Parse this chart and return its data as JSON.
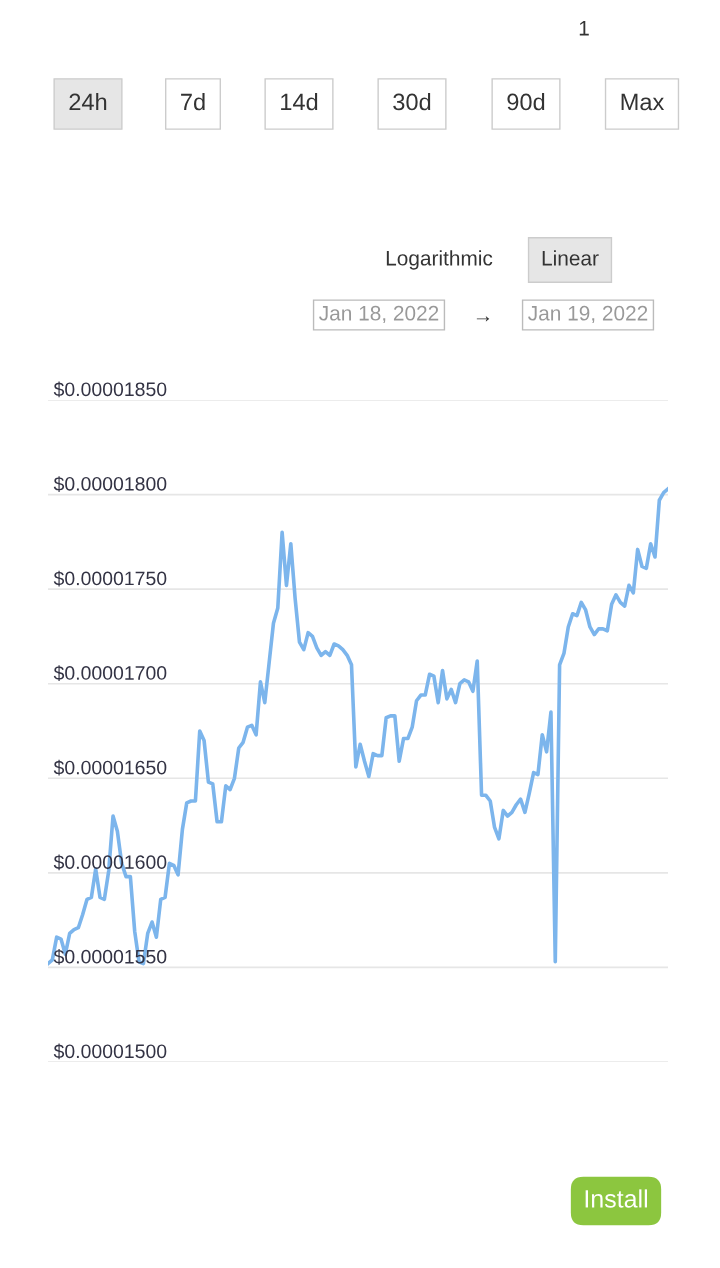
{
  "chart_data": {
    "type": "line",
    "categories": [
      null,
      null,
      null,
      null,
      null,
      null,
      null,
      null,
      null,
      null,
      null,
      null,
      null,
      null,
      null,
      null,
      null,
      null,
      null,
      null,
      null,
      null,
      null,
      null,
      null,
      null,
      null,
      null,
      null,
      null,
      null,
      null,
      null,
      null,
      null,
      null,
      null,
      null,
      null,
      null,
      null,
      null,
      null,
      null,
      null,
      null,
      null,
      null,
      null,
      null,
      null,
      null,
      null,
      null,
      null,
      null,
      null,
      null,
      null,
      null,
      null,
      null,
      null,
      null,
      null,
      null,
      null,
      null,
      null,
      null,
      null,
      null,
      null,
      null,
      null,
      null,
      null,
      null,
      null,
      null,
      null,
      null,
      null,
      null,
      null,
      null,
      null,
      null,
      null,
      null,
      null,
      null,
      null,
      null,
      null,
      null,
      null,
      null,
      null,
      null,
      null,
      null,
      null,
      null,
      null,
      null,
      null,
      null,
      null,
      null,
      null,
      null,
      null,
      null,
      null,
      null,
      null,
      null,
      null,
      null,
      null,
      null,
      null,
      null,
      null,
      null,
      null,
      null,
      null,
      null,
      null,
      null,
      null,
      null,
      null,
      null,
      null,
      null,
      null,
      null,
      null,
      null,
      null,
      null
    ],
    "series": [
      {
        "color": "#7cb5ec",
        "values": [
          1.552e-05,
          1.554e-05,
          1.566e-05,
          1.565e-05,
          1.557e-05,
          1.568e-05,
          1.57e-05,
          1.571e-05,
          1.578e-05,
          1.586e-05,
          1.587e-05,
          1.602e-05,
          1.587e-05,
          1.586e-05,
          1.601e-05,
          1.63e-05,
          1.622e-05,
          1.605e-05,
          1.598e-05,
          1.598e-05,
          1.569e-05,
          1.553e-05,
          1.552e-05,
          1.568e-05,
          1.574e-05,
          1.566e-05,
          1.586e-05,
          1.587e-05,
          1.605e-05,
          1.604e-05,
          1.599e-05,
          1.623e-05,
          1.637e-05,
          1.638e-05,
          1.638e-05,
          1.675e-05,
          1.67e-05,
          1.648e-05,
          1.647e-05,
          1.627e-05,
          1.627e-05,
          1.646e-05,
          1.644e-05,
          1.65e-05,
          1.666e-05,
          1.669e-05,
          1.677e-05,
          1.678e-05,
          1.673e-05,
          1.701e-05,
          1.69e-05,
          1.711e-05,
          1.732e-05,
          1.74e-05,
          1.78e-05,
          1.752e-05,
          1.774e-05,
          1.745e-05,
          1.722e-05,
          1.718e-05,
          1.727e-05,
          1.725e-05,
          1.719e-05,
          1.715e-05,
          1.717e-05,
          1.715e-05,
          1.721e-05,
          1.72e-05,
          1.718e-05,
          1.715e-05,
          1.71e-05,
          1.656e-05,
          1.668e-05,
          1.659e-05,
          1.651e-05,
          1.663e-05,
          1.662e-05,
          1.662e-05,
          1.682e-05,
          1.683e-05,
          1.683e-05,
          1.659e-05,
          1.671e-05,
          1.671e-05,
          1.677e-05,
          1.691e-05,
          1.694e-05,
          1.694e-05,
          1.705e-05,
          1.704e-05,
          1.69e-05,
          1.707e-05,
          1.692e-05,
          1.697e-05,
          1.69e-05,
          1.7e-05,
          1.702e-05,
          1.701e-05,
          1.696e-05,
          1.712e-05,
          1.641e-05,
          1.641e-05,
          1.638e-05,
          1.624e-05,
          1.618e-05,
          1.633e-05,
          1.63e-05,
          1.632e-05,
          1.636e-05,
          1.639e-05,
          1.632e-05,
          1.642e-05,
          1.653e-05,
          1.652e-05,
          1.673e-05,
          1.664e-05,
          1.685e-05,
          1.553e-05,
          1.71e-05,
          1.716e-05,
          1.73e-05,
          1.737e-05,
          1.736e-05,
          1.743e-05,
          1.739e-05,
          1.73e-05,
          1.726e-05,
          1.729e-05,
          1.729e-05,
          1.728e-05,
          1.742e-05,
          1.747e-05,
          1.743e-05,
          1.741e-05,
          1.752e-05,
          1.748e-05,
          1.771e-05,
          1.762e-05,
          1.761e-05,
          1.774e-05,
          1.767e-05,
          1.797e-05,
          1.801e-05,
          1.803e-05
        ]
      }
    ],
    "ylim": [
      1.5e-05,
      1.85e-05
    ],
    "yticks": [
      {
        "value": 1.5e-05,
        "label": "$0.00001500"
      },
      {
        "value": 1.55e-05,
        "label": "$0.00001550"
      },
      {
        "value": 1.6e-05,
        "label": "$0.00001600"
      },
      {
        "value": 1.65e-05,
        "label": "$0.00001650"
      },
      {
        "value": 1.7e-05,
        "label": "$0.00001700"
      },
      {
        "value": 1.75e-05,
        "label": "$0.00001750"
      },
      {
        "value": 1.8e-05,
        "label": "$0.00001800"
      },
      {
        "value": 1.85e-05,
        "label": "$0.00001850"
      }
    ],
    "grid": "y",
    "tick_labels": "y",
    "marker": "none",
    "line_style": "solid",
    "annotations": [
      "24h",
      "7d",
      "14d",
      "30d",
      "90d",
      "Max",
      "Logarithmic",
      "Linear",
      "Jan 18, 2022",
      "→",
      "Jan 19, 2022",
      "Install",
      "1"
    ]
  }
}
